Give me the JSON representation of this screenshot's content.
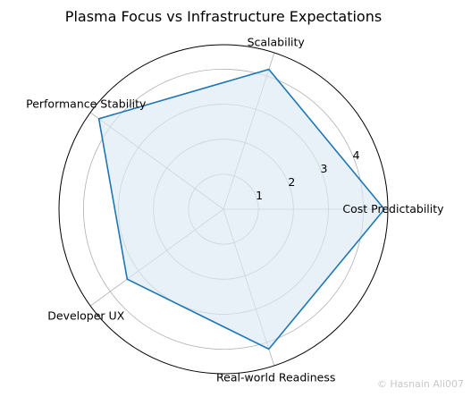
{
  "chart_data": {
    "type": "radar",
    "title": "Plasma Focus vs Infrastructure Expectations",
    "categories": [
      "Cost Predictability",
      "Scalability",
      "Performance Stability",
      "Developer UX",
      "Real-world Readiness"
    ],
    "values": [
      4.6,
      4.2,
      4.4,
      3.4,
      4.2
    ],
    "rmax": 4.7,
    "rticks": [
      1,
      2,
      3,
      4
    ],
    "grid": true,
    "line_color": "#1f77b4",
    "fill_color": "#dce8f5"
  },
  "watermark": "© Hasnain Ali007"
}
